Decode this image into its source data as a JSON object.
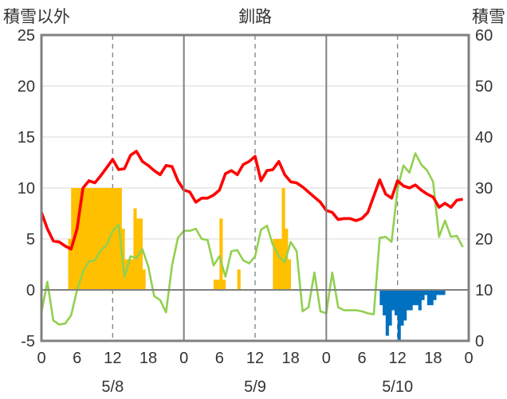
{
  "chart_data": {
    "type": "combo",
    "title": "釧路",
    "y_left_label": "積雪以外",
    "y_right_label": "積雪",
    "y_left": {
      "min": -5,
      "max": 25,
      "ticks": [
        "25",
        "20",
        "15",
        "10",
        "5",
        "0",
        "-5"
      ]
    },
    "y_right": {
      "min": 0,
      "max": 60,
      "ticks": [
        "60",
        "50",
        "40",
        "30",
        "20",
        "10",
        "0"
      ]
    },
    "x_hours": {
      "min": 0,
      "max": 72,
      "tick_labels": [
        "0",
        "6",
        "12",
        "18",
        "0",
        "6",
        "12",
        "18",
        "0",
        "6",
        "12",
        "18",
        "0"
      ]
    },
    "day_labels": [
      "5/8",
      "5/9",
      "5/10"
    ],
    "colors": {
      "temperature": "#ff0000",
      "other": "#92d050",
      "precip": "#ffc000",
      "snow_depth": "#0070c0",
      "bottom_line": "#7030a0",
      "frame": "#808080"
    },
    "precip_bars": [
      [
        4.5,
        5
      ],
      [
        5,
        10
      ],
      [
        5.5,
        10
      ],
      [
        6,
        10
      ],
      [
        6.5,
        10
      ],
      [
        7,
        10
      ],
      [
        7.5,
        10
      ],
      [
        8,
        10
      ],
      [
        8.5,
        10
      ],
      [
        9,
        10
      ],
      [
        9.5,
        10
      ],
      [
        10,
        10
      ],
      [
        10.5,
        10
      ],
      [
        11,
        10
      ],
      [
        11.5,
        10
      ],
      [
        12,
        10
      ],
      [
        12.5,
        10
      ],
      [
        13,
        10
      ],
      [
        13.5,
        6
      ],
      [
        14,
        3
      ],
      [
        14.5,
        3
      ],
      [
        15,
        3
      ],
      [
        15.5,
        8
      ],
      [
        16,
        7
      ],
      [
        16.5,
        7
      ],
      [
        17,
        2
      ],
      [
        29,
        1
      ],
      [
        29.5,
        1
      ],
      [
        30,
        7
      ],
      [
        30.5,
        1
      ],
      [
        33,
        2
      ],
      [
        39,
        5
      ],
      [
        39.5,
        5
      ],
      [
        40,
        5
      ],
      [
        40.5,
        10
      ],
      [
        41,
        6
      ],
      [
        41.5,
        3
      ]
    ],
    "snow_depth_bars": [
      [
        57,
        3
      ],
      [
        57.5,
        5
      ],
      [
        58,
        9
      ],
      [
        58.5,
        7
      ],
      [
        59,
        4
      ],
      [
        59.5,
        5
      ],
      [
        60,
        10
      ],
      [
        60.5,
        7
      ],
      [
        61,
        6
      ],
      [
        61.5,
        4
      ],
      [
        62,
        4
      ],
      [
        62.5,
        3
      ],
      [
        63,
        3
      ],
      [
        63.5,
        4
      ],
      [
        64,
        2
      ],
      [
        64.5,
        1
      ],
      [
        65,
        3
      ],
      [
        65.5,
        3
      ],
      [
        66,
        2
      ],
      [
        66.5,
        1
      ],
      [
        67,
        1
      ],
      [
        67.5,
        1
      ]
    ],
    "temperature_line": [
      [
        0,
        7.6
      ],
      [
        1,
        6
      ],
      [
        2,
        4.8
      ],
      [
        3,
        4.7
      ],
      [
        4,
        4.3
      ],
      [
        5,
        4
      ],
      [
        6,
        6
      ],
      [
        7,
        10
      ],
      [
        8,
        10.7
      ],
      [
        9,
        10.5
      ],
      [
        10,
        11.2
      ],
      [
        11,
        12
      ],
      [
        12,
        12.8
      ],
      [
        13,
        11.8
      ],
      [
        14,
        11.9
      ],
      [
        15,
        13.2
      ],
      [
        16,
        13.6
      ],
      [
        17,
        12.6
      ],
      [
        18,
        12.2
      ],
      [
        19,
        11.7
      ],
      [
        20,
        11.3
      ],
      [
        21,
        12.2
      ],
      [
        22,
        12.1
      ],
      [
        23,
        10.7
      ],
      [
        24,
        9.8
      ],
      [
        25,
        9.6
      ],
      [
        26,
        8.6
      ],
      [
        27,
        9
      ],
      [
        28,
        9
      ],
      [
        29,
        9.3
      ],
      [
        30,
        9.8
      ],
      [
        31,
        11.4
      ],
      [
        32,
        11.7
      ],
      [
        33,
        11.3
      ],
      [
        34,
        12.3
      ],
      [
        35,
        12.6
      ],
      [
        36,
        13.1
      ],
      [
        37,
        10.7
      ],
      [
        38,
        11.7
      ],
      [
        39,
        11.8
      ],
      [
        40,
        12.6
      ],
      [
        41,
        11.3
      ],
      [
        42,
        10.6
      ],
      [
        43,
        10.5
      ],
      [
        44,
        10.1
      ],
      [
        45,
        9.6
      ],
      [
        46,
        9.1
      ],
      [
        47,
        8.6
      ],
      [
        48,
        7.8
      ],
      [
        49,
        7.6
      ],
      [
        50,
        6.9
      ],
      [
        51,
        7
      ],
      [
        52,
        7
      ],
      [
        53,
        6.8
      ],
      [
        54,
        7
      ],
      [
        55,
        7.6
      ],
      [
        56,
        9.2
      ],
      [
        57,
        10.8
      ],
      [
        58,
        9.4
      ],
      [
        59,
        9
      ],
      [
        60,
        10.7
      ],
      [
        61,
        10.2
      ],
      [
        62,
        10
      ],
      [
        63,
        10.3
      ],
      [
        64,
        9.8
      ],
      [
        65,
        9.4
      ],
      [
        66,
        9.1
      ],
      [
        67,
        8.1
      ],
      [
        68,
        8.5
      ],
      [
        69,
        8.1
      ],
      [
        70,
        8.8
      ],
      [
        71,
        8.9
      ]
    ],
    "other_line": [
      [
        0,
        -2.2
      ],
      [
        1,
        0.8
      ],
      [
        2,
        -3
      ],
      [
        3,
        -3.4
      ],
      [
        4,
        -3.3
      ],
      [
        5,
        -2.5
      ],
      [
        6,
        0
      ],
      [
        7,
        1.8
      ],
      [
        8,
        2.8
      ],
      [
        9,
        2.9
      ],
      [
        10,
        3.9
      ],
      [
        11,
        4.4
      ],
      [
        12,
        5.8
      ],
      [
        13,
        6.4
      ],
      [
        14,
        1.3
      ],
      [
        15,
        3.3
      ],
      [
        16,
        3.1
      ],
      [
        17,
        4
      ],
      [
        18,
        2.3
      ],
      [
        19,
        -0.6
      ],
      [
        20,
        -1
      ],
      [
        21,
        -2.2
      ],
      [
        22,
        2.4
      ],
      [
        23,
        5.1
      ],
      [
        24,
        5.8
      ],
      [
        25,
        5.8
      ],
      [
        26,
        6
      ],
      [
        27,
        5
      ],
      [
        28,
        4.9
      ],
      [
        29,
        2.4
      ],
      [
        30,
        3.3
      ],
      [
        31,
        1.3
      ],
      [
        32,
        3.8
      ],
      [
        33,
        3.9
      ],
      [
        34,
        2.9
      ],
      [
        35,
        2.6
      ],
      [
        36,
        3.3
      ],
      [
        37,
        5.9
      ],
      [
        38,
        6.3
      ],
      [
        39,
        4.4
      ],
      [
        40,
        3.3
      ],
      [
        41,
        2.7
      ],
      [
        42,
        4.7
      ],
      [
        43,
        3.8
      ],
      [
        44,
        -2.1
      ],
      [
        45,
        -1.7
      ],
      [
        46,
        1.7
      ],
      [
        47,
        -2.1
      ],
      [
        48,
        -2.3
      ],
      [
        49,
        1.7
      ],
      [
        50,
        -1.7
      ],
      [
        51,
        -2
      ],
      [
        52,
        -2
      ],
      [
        53,
        -2
      ],
      [
        54,
        -2.1
      ],
      [
        55,
        -2.3
      ],
      [
        56,
        -2.4
      ],
      [
        57,
        5.1
      ],
      [
        58,
        5.2
      ],
      [
        59,
        4.7
      ],
      [
        60,
        9.9
      ],
      [
        61,
        12.2
      ],
      [
        62,
        11.5
      ],
      [
        63,
        13.4
      ],
      [
        64,
        12.3
      ],
      [
        65,
        11.7
      ],
      [
        66,
        10.6
      ],
      [
        67,
        5.2
      ],
      [
        68,
        6.8
      ],
      [
        69,
        5.2
      ],
      [
        70,
        5.3
      ],
      [
        71,
        4.2
      ]
    ]
  }
}
